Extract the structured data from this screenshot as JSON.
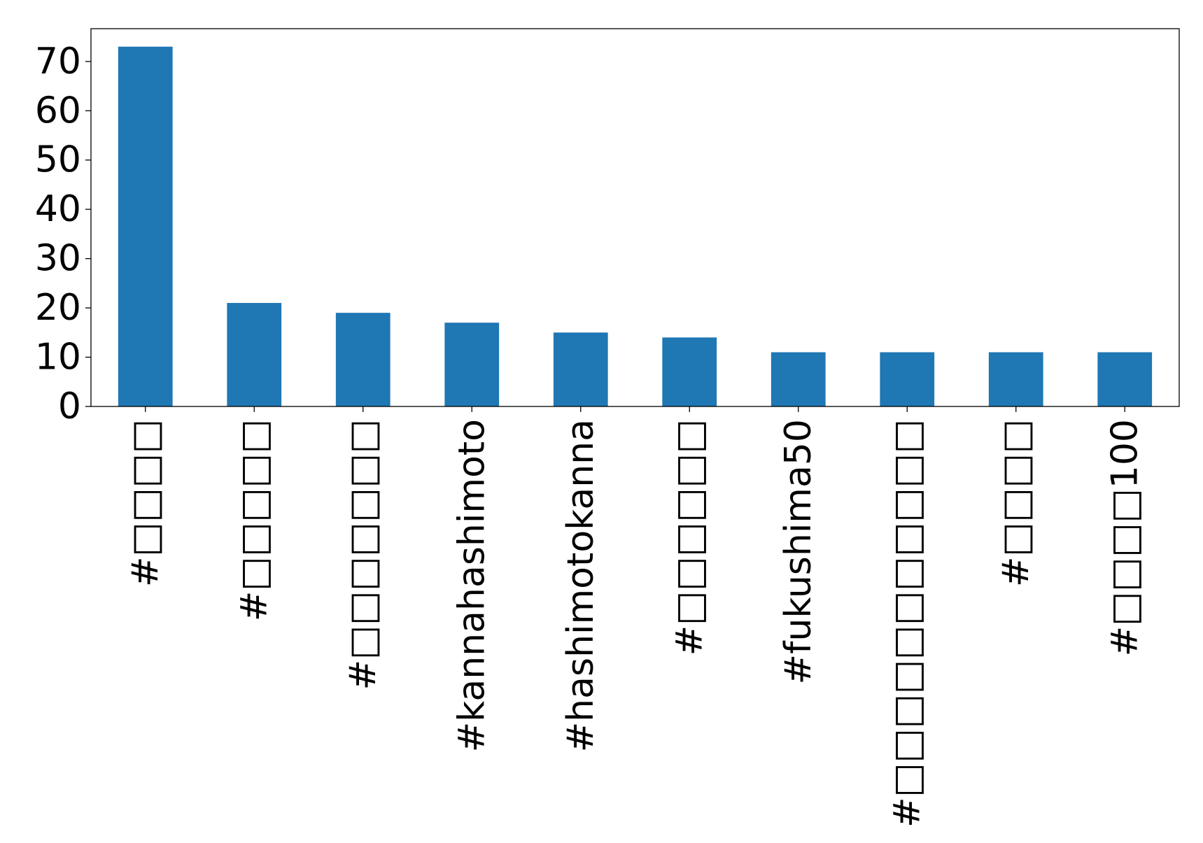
{
  "chart_data": {
    "type": "bar",
    "title": "",
    "xlabel": "",
    "ylabel": "",
    "categories": [
      "#□□□□",
      "#□□□□□",
      "#□□□□□□□",
      "#kannahashimoto",
      "#hashimotokanna",
      "#□□□□□□",
      "#fukushima50",
      "#□□□□□□□□□□□",
      "#□□□□",
      "#□□□□100"
    ],
    "values": [
      73,
      21,
      19,
      17,
      15,
      14,
      11,
      11,
      11,
      11
    ],
    "ylim": [
      0,
      76.65
    ],
    "yticks": [
      0,
      10,
      20,
      30,
      40,
      50,
      60,
      70
    ],
    "grid": false,
    "legend": "none",
    "bar_color": "#1f77b4"
  }
}
